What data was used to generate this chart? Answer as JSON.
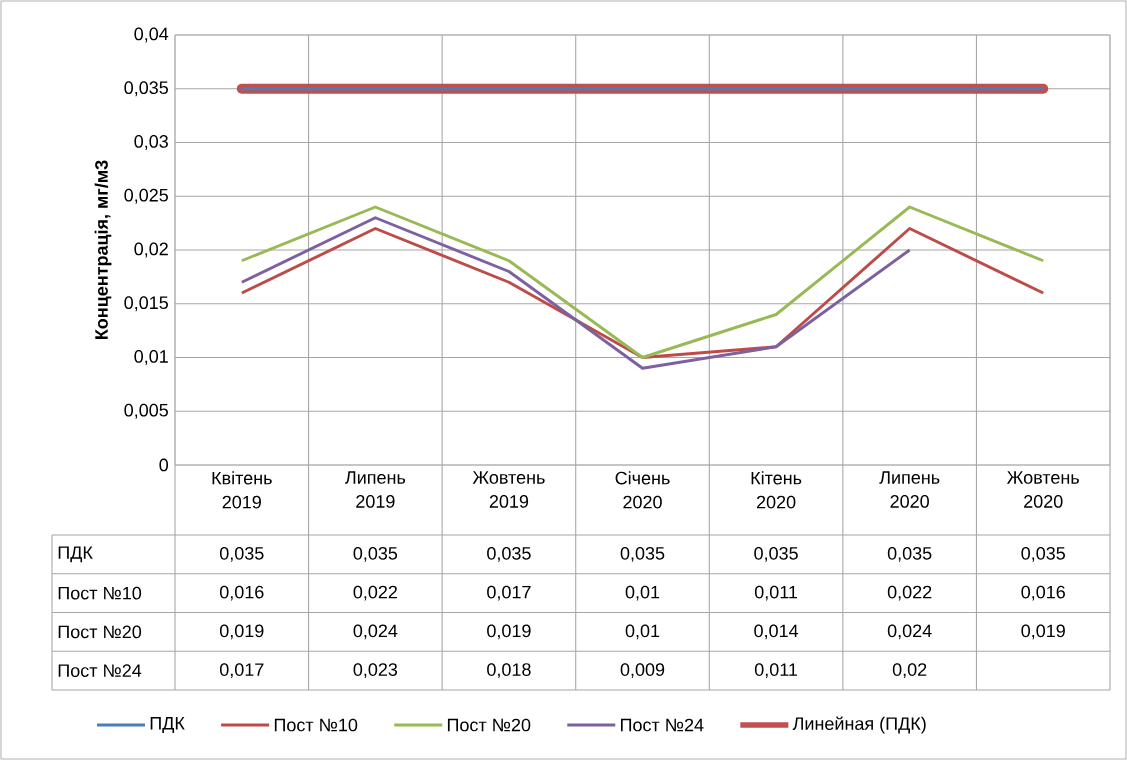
{
  "chart_data": {
    "type": "line",
    "ylabel": "Концентрація, мг/м3",
    "categories": [
      "Квітень 2019",
      "Липень 2019",
      "Жовтень 2019",
      "Січень 2020",
      "Кітень 2020",
      "Липень 2020",
      "Жовтень 2020"
    ],
    "series": [
      {
        "name": "ПДК",
        "color": "#4a7ebb",
        "values": [
          0.035,
          0.035,
          0.035,
          0.035,
          0.035,
          0.035,
          0.035
        ],
        "value_labels": [
          "0,035",
          "0,035",
          "0,035",
          "0,035",
          "0,035",
          "0,035",
          "0,035"
        ]
      },
      {
        "name": "Пост №10",
        "color": "#be4b48",
        "values": [
          0.016,
          0.022,
          0.017,
          0.01,
          0.011,
          0.022,
          0.016
        ],
        "value_labels": [
          "0,016",
          "0,022",
          "0,017",
          "0,01",
          "0,011",
          "0,022",
          "0,016"
        ]
      },
      {
        "name": "Пост №20",
        "color": "#98b954",
        "values": [
          0.019,
          0.024,
          0.019,
          0.01,
          0.014,
          0.024,
          0.019
        ],
        "value_labels": [
          "0,019",
          "0,024",
          "0,019",
          "0,01",
          "0,014",
          "0,024",
          "0,019"
        ]
      },
      {
        "name": "Пост №24",
        "color": "#7d60a0",
        "values": [
          0.017,
          0.023,
          0.018,
          0.009,
          0.011,
          0.02,
          null
        ],
        "value_labels": [
          "0,017",
          "0,023",
          "0,018",
          "0,009",
          "0,011",
          "0,02",
          null
        ]
      },
      {
        "name": "Линейная (ПДК)",
        "type": "line",
        "color": "#c0504d",
        "values": [
          0.035,
          0.035,
          0.035,
          0.035,
          0.035,
          0.035,
          0.035
        ]
      }
    ],
    "ylim": [
      0,
      0.04
    ],
    "yticks": [
      {
        "value": 0,
        "label": "0"
      },
      {
        "value": 0.005,
        "label": "0,005"
      },
      {
        "value": 0.01,
        "label": "0,01"
      },
      {
        "value": 0.015,
        "label": "0,015"
      },
      {
        "value": 0.02,
        "label": "0,02"
      },
      {
        "value": 0.025,
        "label": "0,025"
      },
      {
        "value": 0.03,
        "label": "0,03"
      },
      {
        "value": 0.035,
        "label": "0,035"
      },
      {
        "value": 0.04,
        "label": "0,04"
      }
    ],
    "grid": true,
    "legend": "bottom"
  }
}
